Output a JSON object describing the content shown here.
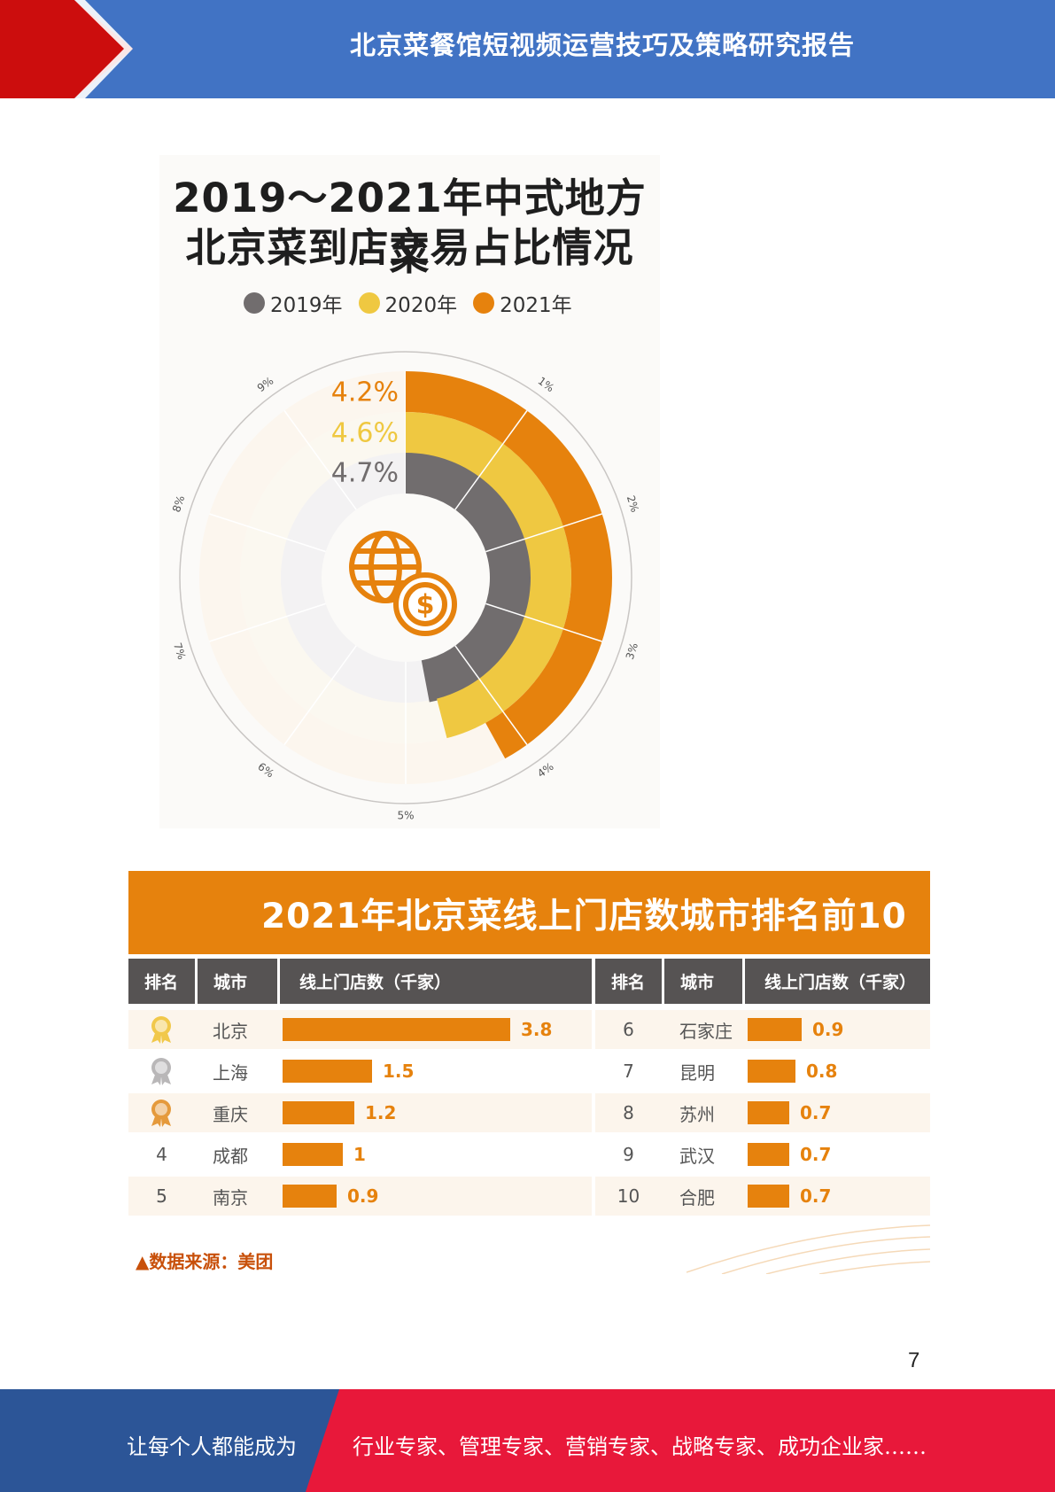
{
  "header": {
    "title": "北京菜餐馆短视频运营技巧及策略研究报告"
  },
  "colors": {
    "header_blue": "#4173c4",
    "red": "#cc0d0d",
    "orange": "#e6820d",
    "yellow": "#efc841",
    "gray": "#716d6e"
  },
  "donut_chart": {
    "title_line1": "2019～2021年中式地方菜",
    "title_line2": "北京菜到店交易占比情况",
    "center_icon": "globe-dollar-icon"
  },
  "chart_data": [
    {
      "type": "radial-bar",
      "title": "2019～2021年中式地方菜北京菜到店交易占比情况",
      "categories": [
        "2019年",
        "2020年",
        "2021年"
      ],
      "values": [
        4.7,
        4.6,
        4.2
      ],
      "value_labels": [
        "4.7%",
        "4.6%",
        "4.2%"
      ],
      "colors": [
        "#716d6e",
        "#efc841",
        "#e6820d"
      ],
      "scale_labels": [
        "1%",
        "2%",
        "3%",
        "4%",
        "5%",
        "6%",
        "7%",
        "8%",
        "9%"
      ],
      "scale_max": 10,
      "legend_position": "top"
    },
    {
      "type": "table",
      "title": "2021年北京菜线上门店数城市排名前10",
      "columns": [
        "排名",
        "城市",
        "线上门店数（千家）"
      ],
      "rows": [
        {
          "rank": "1",
          "city": "北京",
          "value": 3.8,
          "label": "3.8",
          "medal": "gold-medal-icon"
        },
        {
          "rank": "2",
          "city": "上海",
          "value": 1.5,
          "label": "1.5",
          "medal": "silver-medal-icon"
        },
        {
          "rank": "3",
          "city": "重庆",
          "value": 1.2,
          "label": "1.2",
          "medal": "bronze-medal-icon"
        },
        {
          "rank": "4",
          "city": "成都",
          "value": 1,
          "label": "1"
        },
        {
          "rank": "5",
          "city": "南京",
          "value": 0.9,
          "label": "0.9"
        },
        {
          "rank": "6",
          "city": "石家庄",
          "value": 0.9,
          "label": "0.9"
        },
        {
          "rank": "7",
          "city": "昆明",
          "value": 0.8,
          "label": "0.8"
        },
        {
          "rank": "8",
          "city": "苏州",
          "value": 0.7,
          "label": "0.7"
        },
        {
          "rank": "9",
          "city": "武汉",
          "value": 0.7,
          "label": "0.7"
        },
        {
          "rank": "10",
          "city": "合肥",
          "value": 0.7,
          "label": "0.7"
        }
      ]
    }
  ],
  "table_chart": {
    "title": "2021年北京菜线上门店数城市排名前10",
    "headers": {
      "rank": "排名",
      "city": "城市",
      "stores": "线上门店数（千家）"
    },
    "source": "▲数据来源：美团"
  },
  "page_number": "7",
  "footer": {
    "left_text": "让每个人都能成为",
    "right_text": "行业专家、管理专家、营销专家、战略专家、成功企业家……"
  }
}
